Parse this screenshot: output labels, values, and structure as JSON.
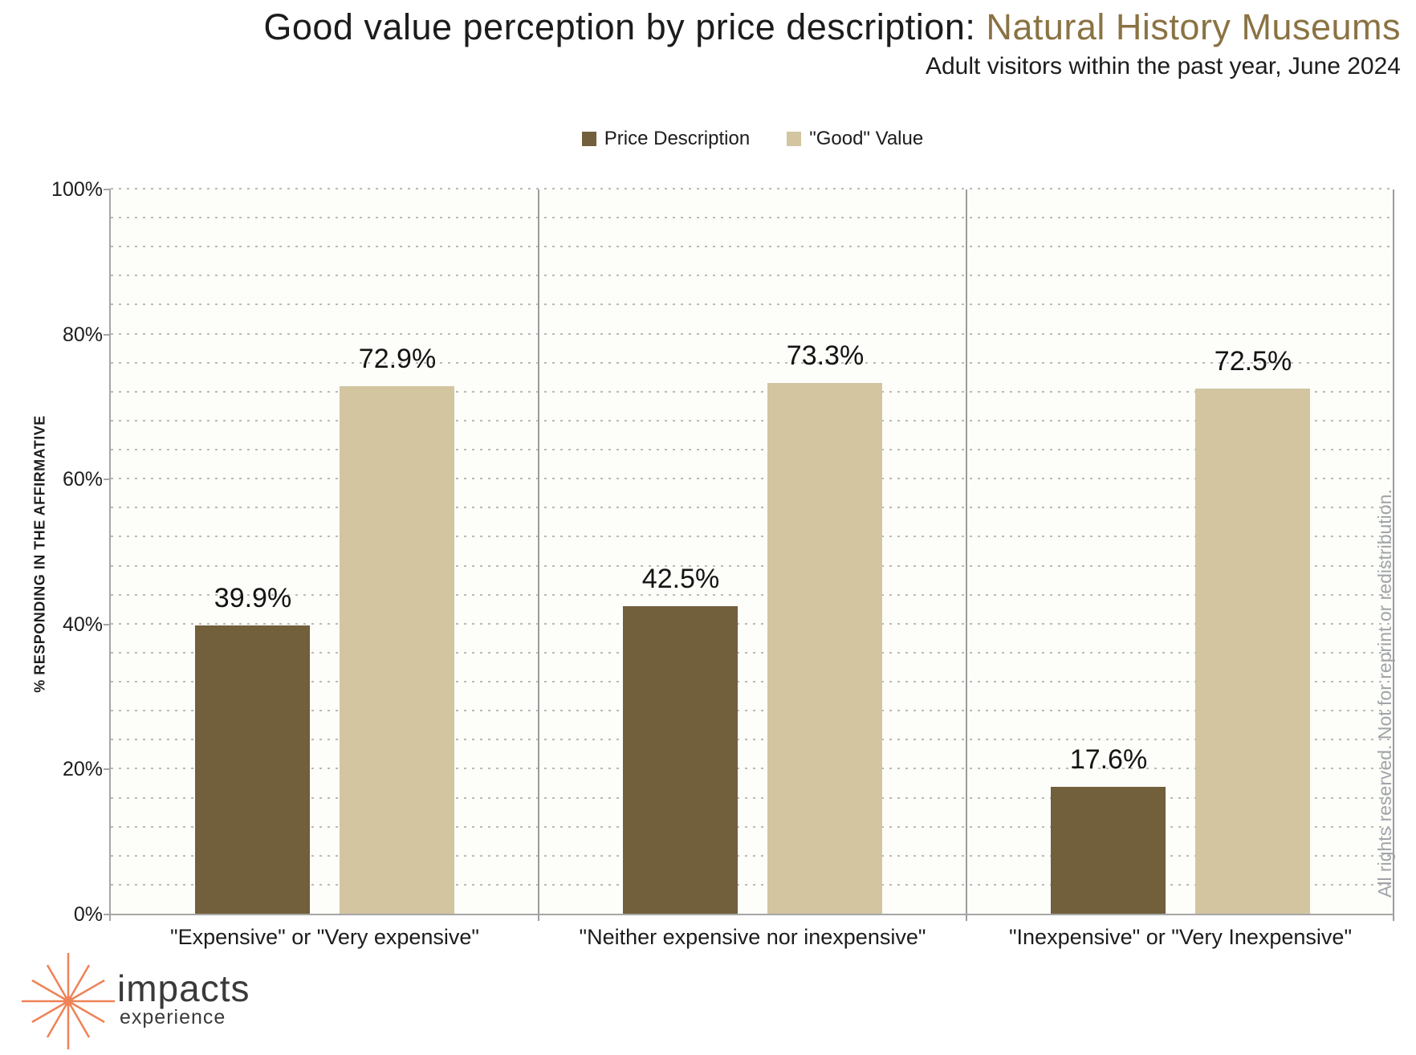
{
  "title": {
    "prefix": "Good value perception by price description: ",
    "highlight": "Natural History Museums",
    "subtitle": "Adult visitors within the past year, June 2024"
  },
  "chart_data": {
    "type": "bar",
    "categories": [
      "\"Expensive\" or \"Very expensive\"",
      "\"Neither expensive nor inexpensive\"",
      "\"Inexpensive\" or \"Very Inexpensive\""
    ],
    "series": [
      {
        "name": "Price Description",
        "color": "#725f3b",
        "values": [
          39.9,
          42.5,
          17.6
        ]
      },
      {
        "name": "\"Good\" Value",
        "color": "#d2c5a0",
        "values": [
          72.9,
          73.3,
          72.5
        ]
      }
    ],
    "value_labels": [
      [
        "39.9%",
        "42.5%",
        "17.6%"
      ],
      [
        "72.9%",
        "73.3%",
        "72.5%"
      ]
    ],
    "title": "Good value perception by price description: Natural History Museums",
    "subtitle": "Adult visitors within the past year, June 2024",
    "xlabel": "",
    "ylabel": "% RESPONDING IN THE AFFIRMATIVE",
    "ylim": [
      0,
      100
    ],
    "y_tick_labels": [
      "0%",
      "20%",
      "40%",
      "60%",
      "80%",
      "100%"
    ],
    "major_tick_step": 20,
    "minor_grid_step": 4,
    "grid": "horizontal-dotted",
    "legend_position": "top"
  },
  "watermark": {
    "line1": "impacts",
    "line2": "experience",
    "rights_text": "All rights reserved. Not for reprint or redistribution."
  },
  "logo": {
    "name": "impacts",
    "sub": "experience"
  },
  "colors": {
    "title_highlight": "#8a7343",
    "text": "#1c1c1c",
    "bar_price_description": "#725f3b",
    "bar_good_value": "#d2c5a0",
    "axis_line": "#a6a6a6",
    "grid_dot": "#b9b9b9",
    "panel_divider": "#9c9c9c",
    "watermark": "#e3e7ec",
    "rights_text": "#a0a4a8",
    "logo_orange": "#ef8257",
    "logo_text": "#3a3a3a"
  }
}
